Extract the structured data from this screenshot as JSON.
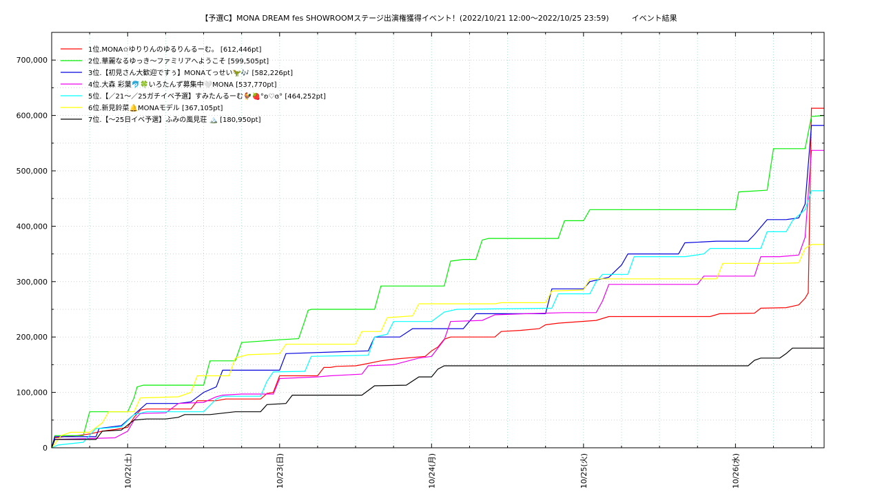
{
  "chart_data": {
    "type": "line",
    "title": "【予選C】MONA DREAM fes SHOWROOMステージ出演権獲得イベント！(2022/10/21 12:00〜2022/10/25 23:59)　　　イベント結果",
    "xlabel": "",
    "ylabel": "",
    "x_range": [
      "2022/10/21 12:00",
      "2022/10/26 12:00"
    ],
    "ylim": [
      0,
      750000
    ],
    "y_ticks": [
      "0",
      "100,000",
      "200,000",
      "300,000",
      "400,000",
      "500,000",
      "600,000",
      "700,000"
    ],
    "x_ticks": [
      "10/22(土)",
      "10/23(日)",
      "10/24(月)",
      "10/25(火)",
      "10/26(水)"
    ],
    "grid": true,
    "legend_position": "top-left",
    "series": [
      {
        "name": "1位.MONA✩ゆりりんのゆるりんるーむ。 [612,446pt]",
        "color": "#ff0000",
        "points": [
          [
            0,
            0
          ],
          [
            1,
            18000
          ],
          [
            4,
            20000
          ],
          [
            8,
            22000
          ],
          [
            12,
            25000
          ],
          [
            16,
            30000
          ],
          [
            20,
            33000
          ],
          [
            24,
            37000
          ],
          [
            26,
            55000
          ],
          [
            28,
            68000
          ],
          [
            30,
            70000
          ],
          [
            36,
            70000
          ],
          [
            44,
            70000
          ],
          [
            46,
            85000
          ],
          [
            52,
            85000
          ],
          [
            55,
            88000
          ],
          [
            66,
            88000
          ],
          [
            68,
            98000
          ],
          [
            70,
            100000
          ],
          [
            72,
            130000
          ],
          [
            84,
            130000
          ],
          [
            86,
            145000
          ],
          [
            88,
            145000
          ],
          [
            90,
            147000
          ],
          [
            96,
            148000
          ],
          [
            98,
            150000
          ],
          [
            104,
            157000
          ],
          [
            108,
            160000
          ],
          [
            118,
            165000
          ],
          [
            120,
            175000
          ],
          [
            122,
            182000
          ],
          [
            124,
            196000
          ],
          [
            126,
            200000
          ],
          [
            140,
            200000
          ],
          [
            142,
            210000
          ],
          [
            148,
            212000
          ],
          [
            154,
            215000
          ],
          [
            156,
            222000
          ],
          [
            160,
            225000
          ],
          [
            172,
            230000
          ],
          [
            176,
            237000
          ],
          [
            196,
            237000
          ],
          [
            208,
            237000
          ],
          [
            211,
            242000
          ],
          [
            222,
            243000
          ],
          [
            224,
            252000
          ],
          [
            232,
            253000
          ],
          [
            236,
            258000
          ],
          [
            238,
            270000
          ],
          [
            239,
            280000
          ],
          [
            240,
            613000
          ],
          [
            244,
            613000
          ]
        ]
      },
      {
        "name": "2位.華麗なるゆっき〜ファミリアへようこそ [599,505pt]",
        "color": "#00ee00",
        "points": [
          [
            0,
            0
          ],
          [
            1,
            22000
          ],
          [
            10,
            22000
          ],
          [
            12,
            65000
          ],
          [
            24,
            65000
          ],
          [
            26,
            90000
          ],
          [
            27,
            110000
          ],
          [
            29,
            113000
          ],
          [
            48,
            113000
          ],
          [
            50,
            157000
          ],
          [
            58,
            157000
          ],
          [
            60,
            190000
          ],
          [
            72,
            195000
          ],
          [
            78,
            197000
          ],
          [
            80,
            230000
          ],
          [
            81,
            248000
          ],
          [
            82,
            250000
          ],
          [
            102,
            250000
          ],
          [
            104,
            292000
          ],
          [
            124,
            292000
          ],
          [
            126,
            337000
          ],
          [
            130,
            340000
          ],
          [
            134,
            340000
          ],
          [
            136,
            375000
          ],
          [
            138,
            378000
          ],
          [
            160,
            378000
          ],
          [
            162,
            410000
          ],
          [
            168,
            410000
          ],
          [
            170,
            430000
          ],
          [
            180,
            430000
          ],
          [
            216,
            430000
          ],
          [
            217,
            462000
          ],
          [
            226,
            465000
          ],
          [
            228,
            540000
          ],
          [
            238,
            540000
          ],
          [
            240,
            598000
          ],
          [
            242,
            599000
          ],
          [
            244,
            600000
          ]
        ]
      },
      {
        "name": "3位.【初見さん大歓迎ですぅ】MONAてっせい🦖🎶 [582,226pt]",
        "color": "#0000dd",
        "points": [
          [
            0,
            0
          ],
          [
            1,
            20000
          ],
          [
            14,
            20000
          ],
          [
            15,
            35000
          ],
          [
            22,
            40000
          ],
          [
            26,
            60000
          ],
          [
            30,
            80000
          ],
          [
            40,
            80000
          ],
          [
            44,
            83000
          ],
          [
            48,
            100000
          ],
          [
            52,
            110000
          ],
          [
            54,
            140000
          ],
          [
            72,
            140000
          ],
          [
            74,
            170000
          ],
          [
            100,
            175000
          ],
          [
            102,
            200000
          ],
          [
            110,
            200000
          ],
          [
            114,
            215000
          ],
          [
            130,
            215000
          ],
          [
            134,
            242000
          ],
          [
            156,
            242000
          ],
          [
            158,
            287000
          ],
          [
            168,
            287000
          ],
          [
            170,
            300000
          ],
          [
            176,
            308000
          ],
          [
            180,
            330000
          ],
          [
            182,
            350000
          ],
          [
            198,
            350000
          ],
          [
            200,
            370000
          ],
          [
            210,
            373000
          ],
          [
            220,
            373000
          ],
          [
            222,
            385000
          ],
          [
            226,
            412000
          ],
          [
            232,
            412000
          ],
          [
            236,
            415000
          ],
          [
            238,
            440000
          ],
          [
            240,
            582000
          ],
          [
            244,
            582000
          ]
        ]
      },
      {
        "name": "4位.大森 彩葉🐬🍀いろたんず募集中🤍MONA [537,770pt]",
        "color": "#ee00ee",
        "points": [
          [
            0,
            0
          ],
          [
            1,
            15000
          ],
          [
            20,
            18000
          ],
          [
            24,
            30000
          ],
          [
            26,
            50000
          ],
          [
            28,
            62000
          ],
          [
            36,
            63000
          ],
          [
            40,
            80000
          ],
          [
            48,
            82000
          ],
          [
            52,
            92000
          ],
          [
            54,
            95000
          ],
          [
            60,
            97000
          ],
          [
            70,
            97000
          ],
          [
            72,
            125000
          ],
          [
            84,
            128000
          ],
          [
            88,
            130000
          ],
          [
            98,
            133000
          ],
          [
            100,
            148000
          ],
          [
            108,
            150000
          ],
          [
            116,
            162000
          ],
          [
            120,
            165000
          ],
          [
            124,
            195000
          ],
          [
            126,
            228000
          ],
          [
            136,
            230000
          ],
          [
            140,
            240000
          ],
          [
            150,
            242000
          ],
          [
            162,
            244000
          ],
          [
            172,
            244000
          ],
          [
            174,
            265000
          ],
          [
            176,
            295000
          ],
          [
            196,
            295000
          ],
          [
            204,
            295000
          ],
          [
            206,
            310000
          ],
          [
            214,
            310000
          ],
          [
            222,
            310000
          ],
          [
            224,
            345000
          ],
          [
            230,
            345000
          ],
          [
            236,
            348000
          ],
          [
            238,
            380000
          ],
          [
            240,
            537000
          ],
          [
            244,
            537000
          ]
        ]
      },
      {
        "name": "5位.【／21〜／25ガチイベ予選】すみたんるーむ🐓🍓°ʚ♡ɞ° [464,252pt]",
        "color": "#00ffff",
        "points": [
          [
            0,
            0
          ],
          [
            2,
            5000
          ],
          [
            10,
            10000
          ],
          [
            14,
            35000
          ],
          [
            16,
            35000
          ],
          [
            22,
            38000
          ],
          [
            26,
            60000
          ],
          [
            30,
            65000
          ],
          [
            48,
            65000
          ],
          [
            52,
            88000
          ],
          [
            54,
            93000
          ],
          [
            66,
            93000
          ],
          [
            68,
            120000
          ],
          [
            70,
            137000
          ],
          [
            80,
            138000
          ],
          [
            82,
            165000
          ],
          [
            100,
            167000
          ],
          [
            102,
            200000
          ],
          [
            106,
            205000
          ],
          [
            108,
            228000
          ],
          [
            120,
            228000
          ],
          [
            124,
            245000
          ],
          [
            128,
            250000
          ],
          [
            158,
            252000
          ],
          [
            160,
            278000
          ],
          [
            170,
            278000
          ],
          [
            172,
            300000
          ],
          [
            174,
            313000
          ],
          [
            182,
            313000
          ],
          [
            184,
            345000
          ],
          [
            200,
            345000
          ],
          [
            206,
            350000
          ],
          [
            208,
            360000
          ],
          [
            224,
            360000
          ],
          [
            226,
            390000
          ],
          [
            232,
            390000
          ],
          [
            234,
            410000
          ],
          [
            238,
            430000
          ],
          [
            240,
            464000
          ],
          [
            244,
            464000
          ]
        ]
      },
      {
        "name": "6位.新見鈴菜🔔MONAモデル [367,105pt]",
        "color": "#ffff00",
        "points": [
          [
            0,
            0
          ],
          [
            3,
            22000
          ],
          [
            6,
            28000
          ],
          [
            12,
            28000
          ],
          [
            16,
            45000
          ],
          [
            18,
            65000
          ],
          [
            26,
            65000
          ],
          [
            28,
            90000
          ],
          [
            40,
            92000
          ],
          [
            44,
            100000
          ],
          [
            46,
            130000
          ],
          [
            56,
            130000
          ],
          [
            58,
            162000
          ],
          [
            62,
            168000
          ],
          [
            72,
            170000
          ],
          [
            74,
            187000
          ],
          [
            96,
            187000
          ],
          [
            98,
            210000
          ],
          [
            104,
            210000
          ],
          [
            106,
            235000
          ],
          [
            114,
            238000
          ],
          [
            116,
            260000
          ],
          [
            140,
            260000
          ],
          [
            142,
            262000
          ],
          [
            156,
            262000
          ],
          [
            158,
            283000
          ],
          [
            168,
            285000
          ],
          [
            170,
            305000
          ],
          [
            210,
            305000
          ],
          [
            212,
            333000
          ],
          [
            230,
            333000
          ],
          [
            236,
            334000
          ],
          [
            238,
            360000
          ],
          [
            240,
            367000
          ],
          [
            244,
            367000
          ]
        ]
      },
      {
        "name": "7位.【〜25日イベ予選】ふみの風見荘 🏔️ [180,950pt]",
        "color": "#000000",
        "points": [
          [
            0,
            0
          ],
          [
            1,
            15000
          ],
          [
            14,
            15000
          ],
          [
            16,
            30000
          ],
          [
            22,
            32000
          ],
          [
            26,
            50000
          ],
          [
            30,
            52000
          ],
          [
            36,
            52000
          ],
          [
            40,
            55000
          ],
          [
            42,
            60000
          ],
          [
            50,
            60000
          ],
          [
            58,
            65000
          ],
          [
            66,
            65000
          ],
          [
            68,
            78000
          ],
          [
            74,
            80000
          ],
          [
            76,
            95000
          ],
          [
            90,
            95000
          ],
          [
            98,
            95000
          ],
          [
            102,
            112000
          ],
          [
            112,
            113000
          ],
          [
            116,
            128000
          ],
          [
            120,
            128000
          ],
          [
            122,
            142000
          ],
          [
            124,
            148000
          ],
          [
            140,
            148000
          ],
          [
            180,
            148000
          ],
          [
            210,
            148000
          ],
          [
            220,
            148000
          ],
          [
            222,
            158000
          ],
          [
            224,
            162000
          ],
          [
            230,
            162000
          ],
          [
            232,
            170000
          ],
          [
            234,
            180000
          ],
          [
            240,
            180000
          ],
          [
            244,
            180000
          ]
        ]
      }
    ]
  }
}
